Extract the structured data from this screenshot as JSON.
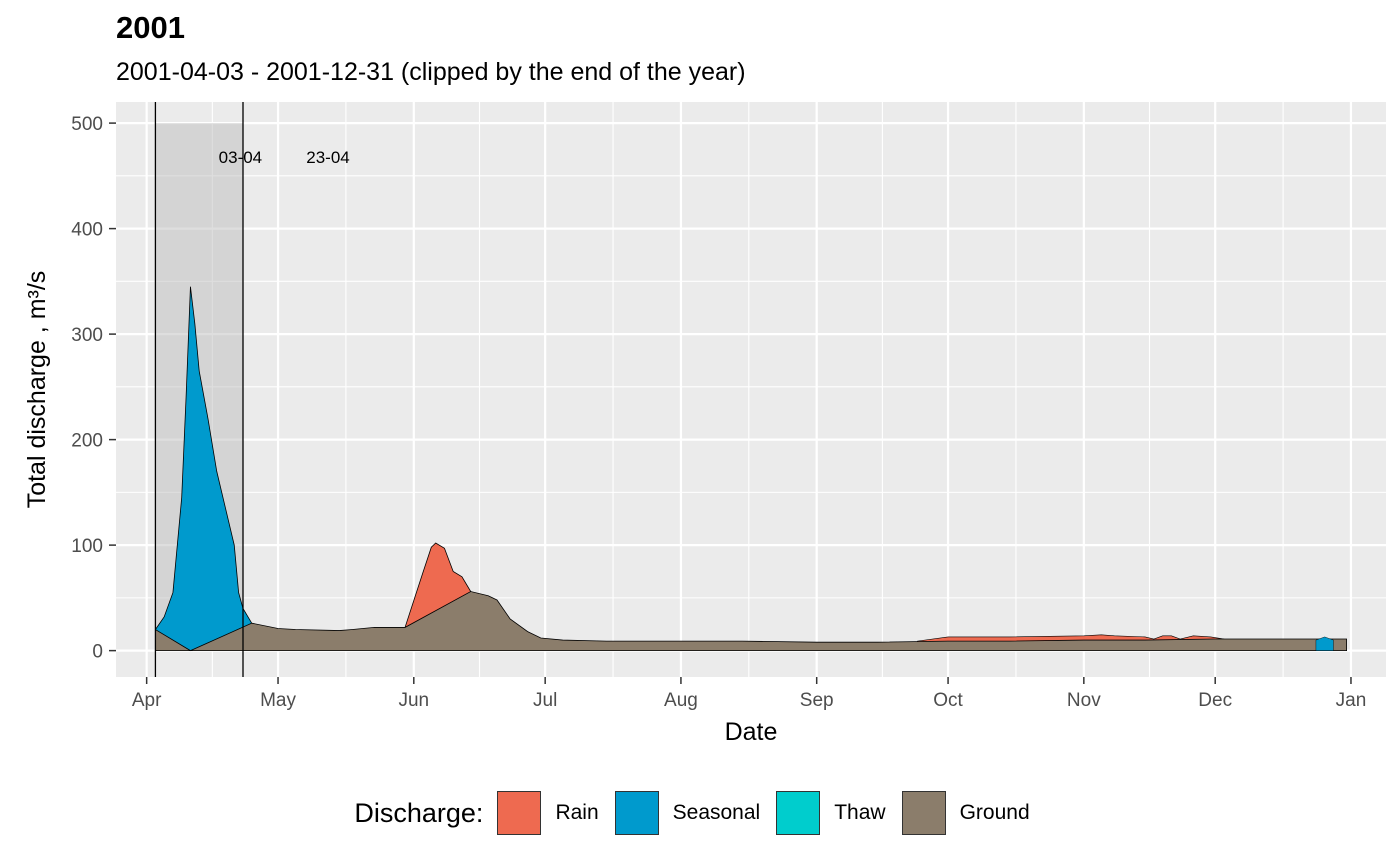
{
  "chart_data": {
    "type": "area",
    "title": "2001",
    "subtitle": "2001-04-03 - 2001-12-31 (clipped by the end of the year)",
    "xlabel": "Date",
    "ylabel": "Total discharge ,  m³/s",
    "ylim": [
      -25,
      520
    ],
    "y_ticks": [
      0,
      100,
      200,
      300,
      400,
      500
    ],
    "x_ticks": [
      {
        "label": "Apr",
        "date": "2001-04-01"
      },
      {
        "label": "May",
        "date": "2001-05-01"
      },
      {
        "label": "Jun",
        "date": "2001-06-01"
      },
      {
        "label": "Jul",
        "date": "2001-07-01"
      },
      {
        "label": "Aug",
        "date": "2001-08-01"
      },
      {
        "label": "Sep",
        "date": "2001-09-01"
      },
      {
        "label": "Oct",
        "date": "2001-10-01"
      },
      {
        "label": "Nov",
        "date": "2001-11-01"
      },
      {
        "label": "Dec",
        "date": "2001-12-01"
      },
      {
        "label": "Jan",
        "date": "2002-01-01"
      }
    ],
    "grid": true,
    "legend_position": "bottom",
    "legend_title": "Discharge:",
    "series": [
      {
        "name": "Rain",
        "color": "#EE6A50",
        "points": [
          [
            "2001-05-30",
            22
          ],
          [
            "2001-06-03",
            73
          ],
          [
            "2001-06-05",
            98
          ],
          [
            "2001-06-06",
            102
          ],
          [
            "2001-06-08",
            97
          ],
          [
            "2001-06-10",
            75
          ],
          [
            "2001-06-12",
            70
          ],
          [
            "2001-06-14",
            56
          ]
        ]
      },
      {
        "name": "Seasonal",
        "color": "#009ACD",
        "points": [
          [
            "2001-04-03",
            20
          ],
          [
            "2001-04-05",
            32
          ],
          [
            "2001-04-07",
            55
          ],
          [
            "2001-04-09",
            145
          ],
          [
            "2001-04-10",
            240
          ],
          [
            "2001-04-11",
            345
          ],
          [
            "2001-04-12",
            310
          ],
          [
            "2001-04-13",
            265
          ],
          [
            "2001-04-15",
            220
          ],
          [
            "2001-04-17",
            170
          ],
          [
            "2001-04-19",
            135
          ],
          [
            "2001-04-21",
            100
          ],
          [
            "2001-04-22",
            55
          ],
          [
            "2001-04-23",
            40
          ],
          [
            "2001-04-25",
            26
          ]
        ]
      },
      {
        "name": "Thaw",
        "color": "#00CDCD",
        "points": []
      },
      {
        "name": "Ground",
        "color": "#8B7D6B",
        "points": [
          [
            "2001-04-03",
            20
          ],
          [
            "2001-04-11",
            0
          ],
          [
            "2001-04-25",
            26
          ],
          [
            "2001-05-01",
            21
          ],
          [
            "2001-05-05",
            20
          ],
          [
            "2001-05-15",
            19
          ],
          [
            "2001-05-18",
            20
          ],
          [
            "2001-05-23",
            22
          ],
          [
            "2001-05-30",
            22
          ],
          [
            "2001-06-14",
            56
          ],
          [
            "2001-06-18",
            52
          ],
          [
            "2001-06-20",
            48
          ],
          [
            "2001-06-23",
            30
          ],
          [
            "2001-06-27",
            18
          ],
          [
            "2001-06-30",
            12
          ],
          [
            "2001-07-05",
            10
          ],
          [
            "2001-07-15",
            9
          ],
          [
            "2001-08-01",
            9
          ],
          [
            "2001-08-15",
            9
          ],
          [
            "2001-09-01",
            8
          ],
          [
            "2001-09-15",
            8
          ],
          [
            "2001-10-01",
            9
          ],
          [
            "2001-10-15",
            9
          ],
          [
            "2001-11-01",
            10
          ],
          [
            "2001-11-15",
            10
          ],
          [
            "2001-12-01",
            11
          ],
          [
            "2001-12-15",
            11
          ],
          [
            "2001-12-31",
            11
          ]
        ]
      }
    ],
    "rain_overlay": [
      [
        "2001-09-24",
        9
      ],
      [
        "2001-10-01",
        13
      ],
      [
        "2001-10-15",
        13
      ],
      [
        "2001-11-01",
        14
      ],
      [
        "2001-11-05",
        15
      ],
      [
        "2001-11-08",
        14
      ],
      [
        "2001-11-15",
        13
      ],
      [
        "2001-11-17",
        11
      ],
      [
        "2001-11-19",
        14
      ],
      [
        "2001-11-21",
        14
      ],
      [
        "2001-11-23",
        11
      ],
      [
        "2001-11-26",
        14
      ],
      [
        "2001-11-30",
        13
      ],
      [
        "2001-12-03",
        11
      ]
    ],
    "annotations": [
      {
        "label": "03-04",
        "date": "2001-04-03"
      },
      {
        "label": "23-04",
        "date": "2001-04-23"
      }
    ],
    "shaded_region": {
      "from": "2001-04-03",
      "to": "2001-04-23",
      "y_top": 500
    }
  }
}
